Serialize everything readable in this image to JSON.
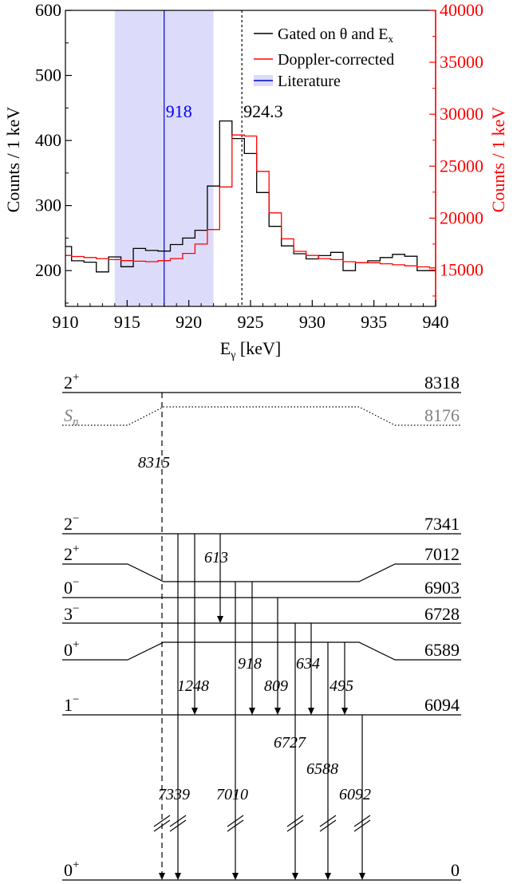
{
  "chart_data": {
    "type": "line",
    "xlabel": "E",
    "xlabel_sub": "γ",
    "xlabel_unit": " [keV]",
    "ylabel_left": "Counts / 1 keV",
    "ylabel_right": "Counts / 1 keV",
    "xlim": [
      910,
      940
    ],
    "ylim_left": [
      145,
      600
    ],
    "ylim_right": [
      11500,
      40000
    ],
    "x_ticks": [
      910,
      915,
      920,
      925,
      930,
      935,
      940
    ],
    "y_ticks_left": [
      200,
      300,
      400,
      500,
      600
    ],
    "y_ticks_right": [
      15000,
      20000,
      25000,
      30000,
      35000,
      40000
    ],
    "band": {
      "label": "Literature",
      "from": 914,
      "to": 922,
      "line": 918,
      "value_label": "918",
      "color": "#0000ff"
    },
    "measured": {
      "value": 924.3,
      "label": "924.3"
    },
    "legend_position": "top-right",
    "series": [
      {
        "name": "Gated on θ and E",
        "name_sub": "x",
        "color": "#000000",
        "axis": "left",
        "x": [
          910,
          911,
          912,
          913,
          914,
          915,
          916,
          917,
          918,
          919,
          920,
          921,
          922,
          923,
          924,
          925,
          926,
          927,
          928,
          929,
          930,
          931,
          932,
          933,
          934,
          935,
          936,
          937,
          938,
          939,
          940
        ],
        "values": [
          237,
          215,
          213,
          198,
          221,
          206,
          234,
          231,
          230,
          240,
          250,
          262,
          330,
          430,
          403,
          380,
          320,
          268,
          238,
          226,
          218,
          223,
          228,
          200,
          212,
          215,
          220,
          225,
          222,
          200,
          200
        ]
      },
      {
        "name": "Doppler-corrected",
        "color": "#ff0000",
        "axis": "right",
        "x": [
          910,
          911,
          912,
          913,
          914,
          915,
          916,
          917,
          918,
          919,
          920,
          921,
          922,
          923,
          924,
          925,
          926,
          927,
          928,
          929,
          930,
          931,
          932,
          933,
          934,
          935,
          936,
          937,
          938,
          939,
          940
        ],
        "values": [
          16400,
          16300,
          16200,
          16100,
          16000,
          15900,
          15850,
          15800,
          15900,
          16100,
          16600,
          17500,
          18900,
          23000,
          28000,
          27900,
          24500,
          20500,
          18000,
          16800,
          16400,
          16100,
          16000,
          15800,
          15700,
          15700,
          15600,
          15500,
          15400,
          15300,
          15200
        ]
      }
    ]
  },
  "level_scheme": {
    "sn": {
      "label": "S",
      "label_sub": "n",
      "energy": "8176",
      "color": "#808080"
    },
    "levels": [
      {
        "spin": "2",
        "parity": "+",
        "energy": "8318"
      },
      {
        "spin": "2",
        "parity": "−",
        "energy": "7341"
      },
      {
        "spin": "2",
        "parity": "+",
        "energy": "7012"
      },
      {
        "spin": "0",
        "parity": "−",
        "energy": "6903"
      },
      {
        "spin": "3",
        "parity": "−",
        "energy": "6728"
      },
      {
        "spin": "0",
        "parity": "+",
        "energy": "6589"
      },
      {
        "spin": "1",
        "parity": "−",
        "energy": "6094"
      },
      {
        "spin": "0",
        "parity": "+",
        "energy": "0"
      }
    ],
    "transitions": [
      {
        "label": "8315"
      },
      {
        "label": "613"
      },
      {
        "label": "1248"
      },
      {
        "label": "918"
      },
      {
        "label": "809"
      },
      {
        "label": "634"
      },
      {
        "label": "495"
      },
      {
        "label": "6727"
      },
      {
        "label": "6588"
      },
      {
        "label": "7339"
      },
      {
        "label": "7010"
      },
      {
        "label": "6092"
      }
    ]
  }
}
